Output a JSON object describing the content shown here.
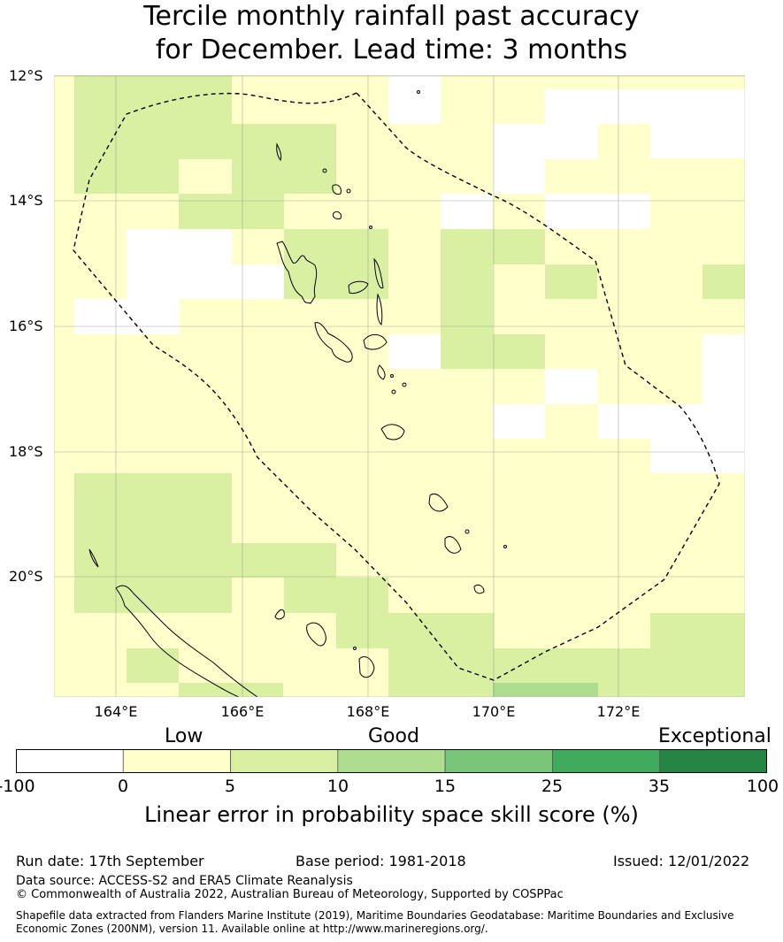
{
  "title_line1": "Tercile monthly rainfall past accuracy",
  "title_line2": "for December. Lead time: 3 months",
  "map": {
    "lat_ticks": [
      "12°S",
      "14°S",
      "16°S",
      "18°S",
      "20°S"
    ],
    "lon_ticks": [
      "164°E",
      "166°E",
      "168°E",
      "170°E",
      "172°E"
    ],
    "boundary_style": "dashed",
    "colors": {
      "white": "#ffffff",
      "low": "#ffffcc",
      "good": "#d9f0a3",
      "good2": "#addd8e"
    }
  },
  "legend": {
    "categories": [
      "Low",
      "Good",
      "Exceptional"
    ],
    "ticks": [
      "-100",
      "0",
      "5",
      "10",
      "15",
      "25",
      "35",
      "100"
    ],
    "colors": [
      "#ffffff",
      "#ffffcc",
      "#d9f0a3",
      "#addd8e",
      "#78c679",
      "#41ab5d",
      "#238443"
    ],
    "label": "Linear error in probability space skill score (%)"
  },
  "footer": {
    "run_date": "Run date: 17th September",
    "base_period": "Base period: 1981-2018",
    "issued": "Issued: 12/01/2022",
    "data_source": "Data source: ACCESS-S2 and ERA5 Climate Reanalysis",
    "copyright": "© Commonwealth of Australia 2022, Australian Bureau of Meteorology, Supported by COSPPac",
    "shapefile_note": "Shapefile data extracted from Flanders Marine Institute (2019), Maritime Boundaries Geodatabase: Maritime Boundaries and Exclusive Economic Zones (200NM), version 11. Available online at http://www.marineregions.org/."
  }
}
